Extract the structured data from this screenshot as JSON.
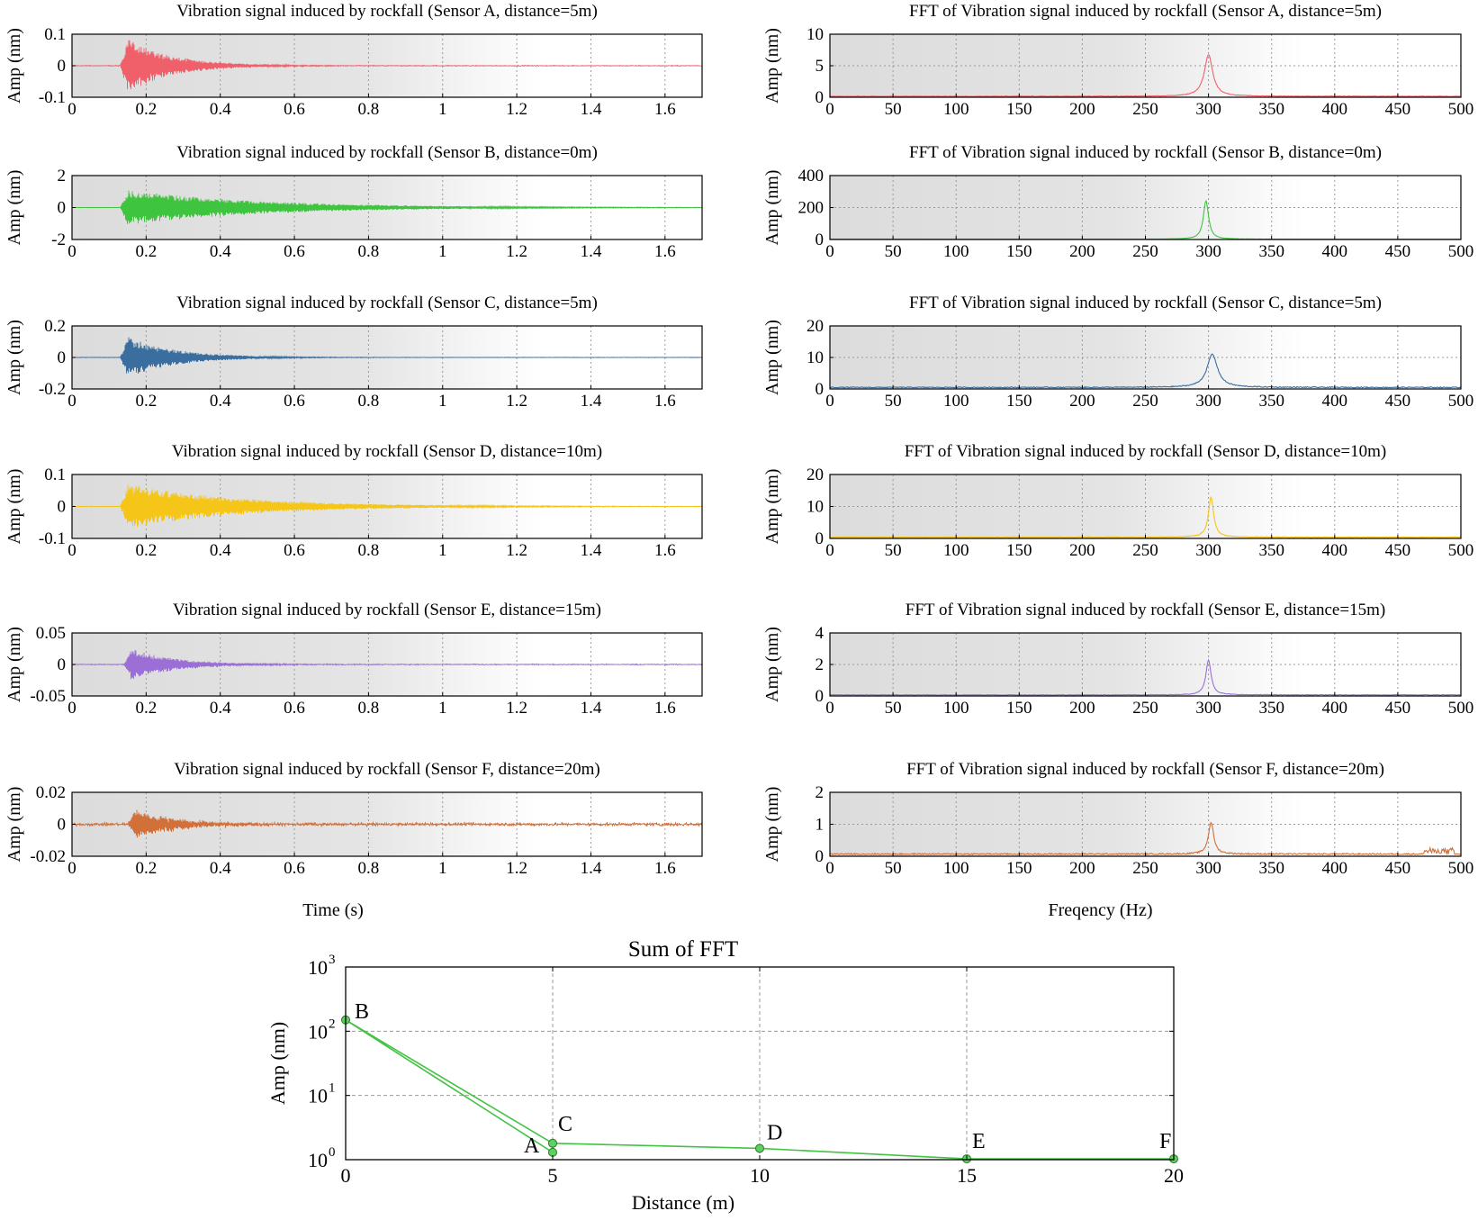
{
  "chart_data": [
    {
      "type": "line",
      "panel": "time",
      "title": "Vibration signal induced by rockfall (Sensor A, distance=5m)",
      "ylabel": "Amp (nm)",
      "xlabel": "",
      "xlim": [
        0,
        1.7
      ],
      "ylim": [
        -0.1,
        0.1
      ],
      "yticks": [
        -0.1,
        0,
        0.1
      ],
      "yticklabels": [
        "-0.1",
        "0",
        "0.1"
      ],
      "xticks": [
        0,
        0.2,
        0.4,
        0.6,
        0.8,
        1,
        1.2,
        1.4,
        1.6
      ],
      "xticklabels": [
        "0",
        "0.2",
        "0.4",
        "0.6",
        "0.8",
        "1",
        "1.2",
        "1.4",
        "1.6"
      ],
      "color": "#f0606a",
      "envelope": {
        "onset": 0.13,
        "peak": 0.085,
        "decay": 0.12,
        "noise": 0.002,
        "freq": 300
      }
    },
    {
      "type": "line",
      "panel": "fft",
      "title": "FFT of  Vibration signal induced by rockfall (Sensor A, distance=5m)",
      "ylabel": "Amp (nm)",
      "xlabel": "",
      "xlim": [
        0,
        500
      ],
      "ylim": [
        0,
        10
      ],
      "yticks": [
        0,
        5,
        10
      ],
      "yticklabels": [
        "0",
        "5",
        "10"
      ],
      "xticks": [
        0,
        50,
        100,
        150,
        200,
        250,
        300,
        350,
        400,
        450,
        500
      ],
      "xticklabels": [
        "0",
        "50",
        "100",
        "150",
        "200",
        "250",
        "300",
        "350",
        "400",
        "450",
        "500"
      ],
      "color": "#f0606a",
      "spectrum": {
        "peak_freq": 300,
        "peak_amp": 6.6,
        "width": 4,
        "baseline": 0.15
      }
    },
    {
      "type": "line",
      "panel": "time",
      "title": "Vibration signal induced by rockfall (Sensor B, distance=0m)",
      "ylabel": "Amp (nm)",
      "xlabel": "",
      "xlim": [
        0,
        1.7
      ],
      "ylim": [
        -2,
        2
      ],
      "yticks": [
        -2,
        0,
        2
      ],
      "yticklabels": [
        "-2",
        "0",
        "2"
      ],
      "xticks": [
        0,
        0.2,
        0.4,
        0.6,
        0.8,
        1,
        1.2,
        1.4,
        1.6
      ],
      "xticklabels": [
        "0",
        "0.2",
        "0.4",
        "0.6",
        "0.8",
        "1",
        "1.2",
        "1.4",
        "1.6"
      ],
      "color": "#3ec43e",
      "envelope": {
        "onset": 0.13,
        "peak": 1.1,
        "decay": 0.35,
        "noise": 0.01,
        "freq": 300
      }
    },
    {
      "type": "line",
      "panel": "fft",
      "title": "FFT of  Vibration signal induced by rockfall (Sensor B, distance=0m)",
      "ylabel": "Amp (nm)",
      "xlabel": "",
      "xlim": [
        0,
        500
      ],
      "ylim": [
        0,
        400
      ],
      "yticks": [
        0,
        200,
        400
      ],
      "yticklabels": [
        "0",
        "200",
        "400"
      ],
      "xticks": [
        0,
        50,
        100,
        150,
        200,
        250,
        300,
        350,
        400,
        450,
        500
      ],
      "xticklabels": [
        "0",
        "50",
        "100",
        "150",
        "200",
        "250",
        "300",
        "350",
        "400",
        "450",
        "500"
      ],
      "color": "#3ec43e",
      "spectrum": {
        "peak_freq": 298,
        "peak_amp": 240,
        "width": 2.5,
        "baseline": 2
      }
    },
    {
      "type": "line",
      "panel": "time",
      "title": "Vibration signal induced by rockfall (Sensor C, distance=5m)",
      "ylabel": "Amp (nm)",
      "xlabel": "",
      "xlim": [
        0,
        1.7
      ],
      "ylim": [
        -0.2,
        0.2
      ],
      "yticks": [
        -0.2,
        0,
        0.2
      ],
      "yticklabels": [
        "-0.2",
        "0",
        "0.2"
      ],
      "xticks": [
        0,
        0.2,
        0.4,
        0.6,
        0.8,
        1,
        1.2,
        1.4,
        1.6
      ],
      "xticklabels": [
        "0",
        "0.2",
        "0.4",
        "0.6",
        "0.8",
        "1",
        "1.2",
        "1.4",
        "1.6"
      ],
      "color": "#3a6e9e",
      "envelope": {
        "onset": 0.13,
        "peak": 0.13,
        "decay": 0.13,
        "noise": 0.002,
        "freq": 300
      }
    },
    {
      "type": "line",
      "panel": "fft",
      "title": "FFT of  Vibration signal induced by rockfall (Sensor C, distance=5m)",
      "ylabel": "Amp (nm)",
      "xlabel": "",
      "xlim": [
        0,
        500
      ],
      "ylim": [
        0,
        20
      ],
      "yticks": [
        0,
        10,
        20
      ],
      "yticklabels": [
        "0",
        "10",
        "20"
      ],
      "xticks": [
        0,
        50,
        100,
        150,
        200,
        250,
        300,
        350,
        400,
        450,
        500
      ],
      "xticklabels": [
        "0",
        "50",
        "100",
        "150",
        "200",
        "250",
        "300",
        "350",
        "400",
        "450",
        "500"
      ],
      "color": "#3a6e9e",
      "spectrum": {
        "peak_freq": 303,
        "peak_amp": 10.5,
        "width": 5,
        "baseline": 0.5
      }
    },
    {
      "type": "line",
      "panel": "time",
      "title": "Vibration signal induced by rockfall (Sensor D, distance=10m)",
      "ylabel": "Amp (nm)",
      "xlabel": "",
      "xlim": [
        0,
        1.7
      ],
      "ylim": [
        -0.1,
        0.1
      ],
      "yticks": [
        -0.1,
        0,
        0.1
      ],
      "yticklabels": [
        "-0.1",
        "0",
        "0.1"
      ],
      "xticks": [
        0,
        0.2,
        0.4,
        0.6,
        0.8,
        1,
        1.2,
        1.4,
        1.6
      ],
      "xticklabels": [
        "0",
        "0.2",
        "0.4",
        "0.6",
        "0.8",
        "1",
        "1.2",
        "1.4",
        "1.6"
      ],
      "color": "#f5c518",
      "envelope": {
        "onset": 0.13,
        "peak": 0.07,
        "decay": 0.3,
        "noise": 0.001,
        "freq": 300
      }
    },
    {
      "type": "line",
      "panel": "fft",
      "title": "FFT of  Vibration signal induced by rockfall (Sensor D, distance=10m)",
      "ylabel": "Amp (nm)",
      "xlabel": "",
      "xlim": [
        0,
        500
      ],
      "ylim": [
        0,
        20
      ],
      "yticks": [
        0,
        10,
        20
      ],
      "yticklabels": [
        "0",
        "10",
        "20"
      ],
      "xticks": [
        0,
        50,
        100,
        150,
        200,
        250,
        300,
        350,
        400,
        450,
        500
      ],
      "xticklabels": [
        "0",
        "50",
        "100",
        "150",
        "200",
        "250",
        "300",
        "350",
        "400",
        "450",
        "500"
      ],
      "color": "#f5c518",
      "spectrum": {
        "peak_freq": 302,
        "peak_amp": 12.5,
        "width": 2.5,
        "baseline": 0.4
      }
    },
    {
      "type": "line",
      "panel": "time",
      "title": "Vibration signal induced by rockfall (Sensor E, distance=15m)",
      "ylabel": "Amp (nm)",
      "xlabel": "",
      "xlim": [
        0,
        1.7
      ],
      "ylim": [
        -0.05,
        0.05
      ],
      "yticks": [
        -0.05,
        0,
        0.05
      ],
      "yticklabels": [
        "-0.05",
        "0",
        "0.05"
      ],
      "xticks": [
        0,
        0.2,
        0.4,
        0.6,
        0.8,
        1,
        1.2,
        1.4,
        1.6
      ],
      "xticklabels": [
        "0",
        "0.2",
        "0.4",
        "0.6",
        "0.8",
        "1",
        "1.2",
        "1.4",
        "1.6"
      ],
      "color": "#9b6fd6",
      "envelope": {
        "onset": 0.14,
        "peak": 0.025,
        "decay": 0.12,
        "noise": 0.0012,
        "freq": 300
      }
    },
    {
      "type": "line",
      "panel": "fft",
      "title": "FFT of  Vibration signal induced by rockfall (Sensor E, distance=15m)",
      "ylabel": "Amp (nm)",
      "xlabel": "",
      "xlim": [
        0,
        500
      ],
      "ylim": [
        0,
        4
      ],
      "yticks": [
        0,
        2,
        4
      ],
      "yticklabels": [
        "0",
        "2",
        "4"
      ],
      "xticks": [
        0,
        50,
        100,
        150,
        200,
        250,
        300,
        350,
        400,
        450,
        500
      ],
      "xticklabels": [
        "0",
        "50",
        "100",
        "150",
        "200",
        "250",
        "300",
        "350",
        "400",
        "450",
        "500"
      ],
      "color": "#9b6fd6",
      "spectrum": {
        "peak_freq": 300,
        "peak_amp": 2.2,
        "width": 2.5,
        "baseline": 0.07
      }
    },
    {
      "type": "line",
      "panel": "time",
      "title": "Vibration signal induced by rockfall (Sensor F, distance=20m)",
      "ylabel": "Amp (nm)",
      "xlabel": "Time (s)",
      "xlim": [
        0,
        1.7
      ],
      "ylim": [
        -0.02,
        0.02
      ],
      "yticks": [
        -0.02,
        0,
        0.02
      ],
      "yticklabels": [
        "-0.02",
        "0",
        "0.02"
      ],
      "xticks": [
        0,
        0.2,
        0.4,
        0.6,
        0.8,
        1,
        1.2,
        1.4,
        1.6
      ],
      "xticklabels": [
        "0",
        "0.2",
        "0.4",
        "0.6",
        "0.8",
        "1",
        "1.2",
        "1.4",
        "1.6"
      ],
      "color": "#d2703a",
      "envelope": {
        "onset": 0.15,
        "peak": 0.009,
        "decay": 0.12,
        "noise": 0.0014,
        "freq": 300
      }
    },
    {
      "type": "line",
      "panel": "fft",
      "title": "FFT of  Vibration signal induced by rockfall (Sensor F, distance=20m)",
      "ylabel": "Amp (nm)",
      "xlabel": "Freqency (Hz)",
      "xlim": [
        0,
        500
      ],
      "ylim": [
        0,
        2
      ],
      "yticks": [
        0,
        1,
        2
      ],
      "yticklabels": [
        "0",
        "1",
        "2"
      ],
      "xticks": [
        0,
        50,
        100,
        150,
        200,
        250,
        300,
        350,
        400,
        450,
        500
      ],
      "xticklabels": [
        "0",
        "50",
        "100",
        "150",
        "200",
        "250",
        "300",
        "350",
        "400",
        "450",
        "500"
      ],
      "color": "#d2703a",
      "spectrum": {
        "peak_freq": 302,
        "peak_amp": 1.0,
        "width": 2.5,
        "baseline": 0.07
      }
    },
    {
      "type": "line",
      "panel": "summary",
      "title": "Sum of  FFT",
      "xlabel": "Distance (m)",
      "ylabel": "Amp (nm)",
      "yscale": "log",
      "xlim": [
        0,
        20
      ],
      "ylim": [
        1,
        1000
      ],
      "xticks": [
        0,
        5,
        10,
        15,
        20
      ],
      "xticklabels": [
        "0",
        "5",
        "10",
        "15",
        "20"
      ],
      "yticks": [
        1,
        10,
        100,
        1000
      ],
      "ytick_base": "10",
      "ytick_exponents": [
        "0",
        "1",
        "2",
        "3"
      ],
      "color": "#44c244",
      "series": [
        {
          "name": "line-1",
          "points": [
            {
              "label": "B",
              "x": 0,
              "y": 150
            },
            {
              "label": "A",
              "x": 5,
              "y": 1.3
            },
            {
              "label": "C",
              "x": 5,
              "y": 1.8
            },
            {
              "label": "D",
              "x": 10,
              "y": 1.5
            },
            {
              "label": "E",
              "x": 15,
              "y": 1.03
            },
            {
              "label": "F",
              "x": 20,
              "y": 1.03
            }
          ]
        }
      ],
      "order": [
        [
          "B",
          0,
          150
        ],
        [
          "A",
          5,
          1.3
        ],
        [
          "C",
          5,
          1.8
        ],
        [
          "B",
          0,
          150
        ]
      ],
      "tail": [
        [
          "C",
          5,
          1.8
        ],
        [
          "D",
          10,
          1.5
        ],
        [
          "E",
          15,
          1.03
        ],
        [
          "F",
          20,
          1.03
        ]
      ]
    }
  ]
}
